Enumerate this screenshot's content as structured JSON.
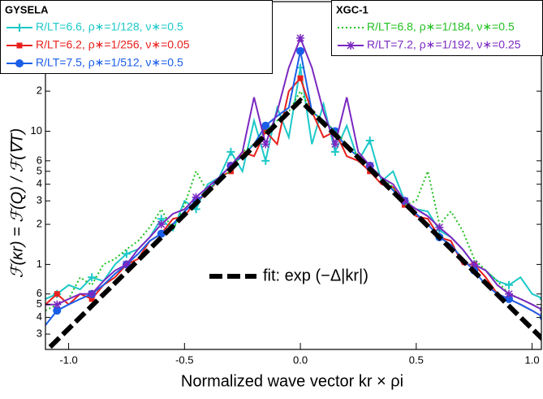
{
  "chart_data": {
    "type": "line",
    "xlabel": "Normalized wave vector  kr × ρi",
    "ylabel": "ℱ(κr) = ℱ(Q) / ℱ(∇T)",
    "log_y": true,
    "xlim": [
      -1.1,
      1.04
    ],
    "ylim": [
      0.23,
      94
    ],
    "xticks": [
      {
        "value": -1,
        "label": "-1.0"
      },
      -0.5,
      {
        "value": 0,
        "label": "0.0"
      },
      0.5,
      {
        "value": 1,
        "label": "1.0"
      }
    ],
    "yticks": [
      {
        "value": 20,
        "label": "2"
      },
      10,
      6,
      5,
      4,
      3,
      2,
      1,
      {
        "value": 0.6,
        "label": "6"
      },
      {
        "value": 0.5,
        "label": "5"
      },
      {
        "value": 0.4,
        "label": "4"
      },
      {
        "value": 0.3,
        "label": "3"
      }
    ],
    "x": [
      -1.1,
      -1.05,
      -1.0,
      -0.95,
      -0.9,
      -0.85,
      -0.8,
      -0.75,
      -0.7,
      -0.65,
      -0.6,
      -0.55,
      -0.5,
      -0.45,
      -0.4,
      -0.35,
      -0.3,
      -0.25,
      -0.2,
      -0.15,
      -0.1,
      -0.05,
      0,
      0.05,
      0.1,
      0.15,
      0.2,
      0.25,
      0.3,
      0.35,
      0.4,
      0.45,
      0.5,
      0.55,
      0.6,
      0.65,
      0.7,
      0.75,
      0.8,
      0.85,
      0.9,
      0.95,
      1.0,
      1.05
    ],
    "series_groups": [
      {
        "title": "GYSELA",
        "series": [
          {
            "name": "R/LT=6.6, ρ∗=1/128, ν∗=0.5",
            "color": "#1ec8c8",
            "marker": "plus",
            "dash": "solid",
            "values": [
              0.55,
              0.6,
              0.7,
              0.65,
              0.8,
              0.75,
              1.0,
              1.2,
              1.3,
              1.6,
              2.2,
              1.8,
              3.0,
              2.6,
              4.0,
              4.5,
              7.0,
              5.0,
              12,
              6.0,
              15,
              9.0,
              30,
              8.0,
              16,
              7.0,
              11,
              6.0,
              8.5,
              4.2,
              5.0,
              3.0,
              2.6,
              2.5,
              1.8,
              1.6,
              1.3,
              1.0,
              0.9,
              0.75,
              0.7,
              0.8,
              0.6,
              0.55
            ]
          },
          {
            "name": "R/LT=6.2, ρ∗=1/256, ν∗=0.05",
            "color": "#e8201c",
            "marker": "square",
            "dash": "solid",
            "values": [
              0.5,
              0.6,
              0.5,
              0.6,
              0.55,
              0.7,
              0.8,
              1.0,
              1.1,
              1.5,
              1.7,
              2.2,
              2.3,
              3.0,
              3.4,
              4.5,
              5.0,
              7.0,
              6.5,
              10,
              8,
              20,
              25,
              14,
              9,
              10,
              6.5,
              6.0,
              5.0,
              4.0,
              3.8,
              2.8,
              2.3,
              2.2,
              1.6,
              1.5,
              1.0,
              1.0,
              0.8,
              0.6,
              0.55,
              0.5,
              0.45,
              0.4
            ]
          },
          {
            "name": "R/LT=7.5, ρ∗=1/512, ν∗=0.5",
            "color": "#1a5ee8",
            "marker": "circle",
            "dash": "solid",
            "values": [
              0.35,
              0.45,
              0.5,
              0.55,
              0.6,
              0.7,
              0.85,
              1.0,
              1.2,
              1.5,
              1.7,
              2.0,
              2.5,
              3.0,
              3.5,
              4.5,
              5.5,
              6.5,
              8.0,
              11,
              13,
              15,
              40,
              14,
              12,
              10,
              7.5,
              6.5,
              5.5,
              4.5,
              3.6,
              3.0,
              2.4,
              2.0,
              1.6,
              1.4,
              1.1,
              0.9,
              0.7,
              0.6,
              0.55,
              0.5,
              0.45,
              0.4
            ]
          }
        ]
      },
      {
        "title": "XGC-1",
        "series": [
          {
            "name": "R/LT=6.8, ρ∗=1/184, ν∗=0.5",
            "color": "#22c022",
            "marker": "none",
            "dash": "dotted",
            "values": [
              0.45,
              0.5,
              0.55,
              0.8,
              0.7,
              1.0,
              1.1,
              1.3,
              1.5,
              1.9,
              2.6,
              1.8,
              2.8,
              5.0,
              3.5,
              4.5,
              5.0,
              7.0,
              8.0,
              10,
              12,
              14,
              20,
              14,
              12,
              10,
              8.0,
              6.5,
              5.5,
              4.5,
              3.8,
              2.8,
              3.0,
              5.0,
              2.0,
              2.5,
              1.8,
              1.1,
              0.9,
              0.75,
              0.6,
              0.55,
              0.5,
              0.45
            ]
          },
          {
            "name": "R/LT=7.2, ρ∗=1/192, ν∗=0.25",
            "color": "#7a28c0",
            "marker": "star",
            "dash": "solid",
            "values": [
              0.5,
              0.5,
              0.55,
              0.6,
              0.6,
              0.75,
              0.9,
              1.0,
              1.3,
              1.6,
              2.0,
              2.4,
              2.6,
              3.2,
              3.8,
              4.5,
              5.5,
              7.0,
              18,
              8.0,
              14,
              30,
              50,
              30,
              14,
              8.0,
              18,
              7.0,
              5.5,
              4.5,
              4.0,
              3.0,
              2.6,
              2.3,
              1.9,
              1.6,
              1.3,
              1.0,
              0.9,
              0.7,
              0.6,
              0.55,
              0.5,
              0.45
            ]
          }
        ]
      }
    ],
    "fit": {
      "label": "fit: exp (−Δ|kr|)",
      "color": "#000000",
      "x": [
        -1.08,
        0,
        1.08
      ],
      "values": [
        0.24,
        17,
        0.24
      ]
    }
  }
}
